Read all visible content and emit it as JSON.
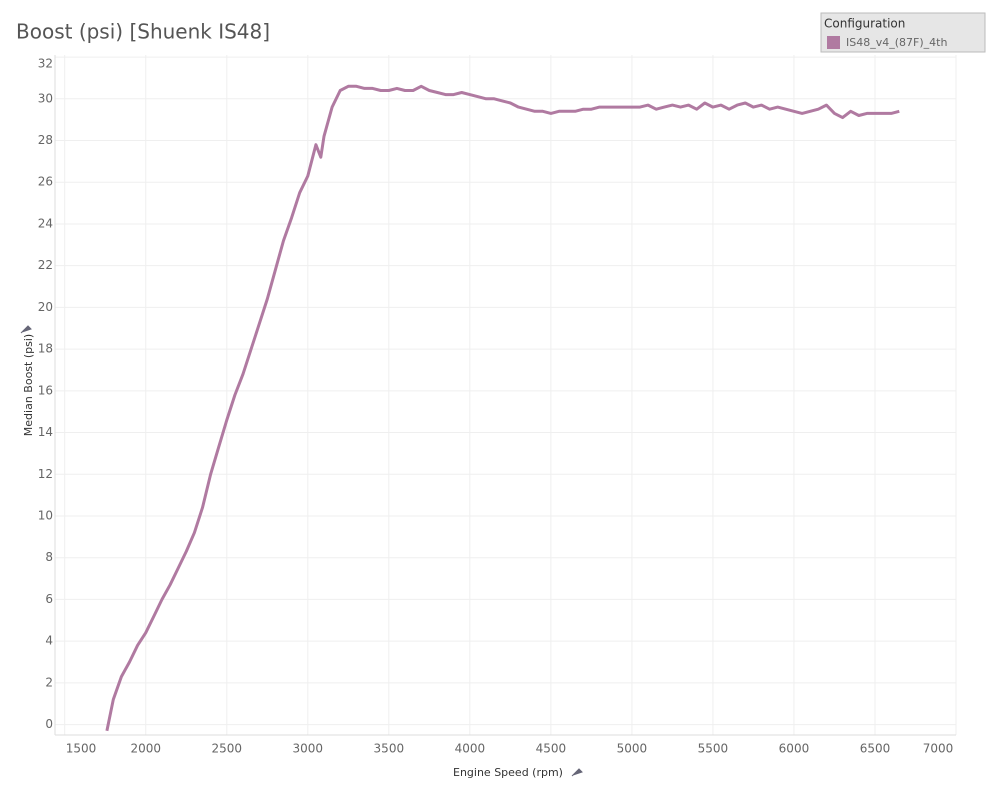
{
  "chart_data": {
    "type": "line",
    "title": "Boost (psi) [Shuenk IS48]",
    "x_label": "Engine Speed (rpm)",
    "y_label": "Median Boost (psi)",
    "legend_title": "Configuration",
    "x": [
      1760,
      1800,
      1850,
      1900,
      1950,
      2000,
      2050,
      2100,
      2150,
      2200,
      2250,
      2300,
      2350,
      2400,
      2450,
      2500,
      2550,
      2600,
      2650,
      2700,
      2750,
      2800,
      2850,
      2900,
      2950,
      3000,
      3050,
      3080,
      3100,
      3150,
      3200,
      3250,
      3300,
      3350,
      3400,
      3450,
      3500,
      3550,
      3600,
      3650,
      3700,
      3750,
      3800,
      3850,
      3900,
      3950,
      4000,
      4050,
      4100,
      4150,
      4200,
      4250,
      4300,
      4350,
      4400,
      4450,
      4500,
      4550,
      4600,
      4650,
      4700,
      4750,
      4800,
      4850,
      4900,
      4950,
      5000,
      5050,
      5100,
      5150,
      5200,
      5250,
      5300,
      5350,
      5400,
      5450,
      5500,
      5550,
      5600,
      5650,
      5700,
      5750,
      5800,
      5850,
      5900,
      5950,
      6000,
      6050,
      6100,
      6150,
      6200,
      6250,
      6300,
      6350,
      6400,
      6450,
      6500,
      6550,
      6600,
      6650
    ],
    "series": [
      {
        "name": "IS48_v4_(87F)_4th",
        "color": "#b07aa1",
        "values": [
          -0.3,
          1.2,
          2.3,
          3.0,
          3.8,
          4.4,
          5.2,
          6.0,
          6.7,
          7.5,
          8.3,
          9.2,
          10.4,
          12.0,
          13.3,
          14.6,
          15.8,
          16.8,
          18.0,
          19.2,
          20.4,
          21.8,
          23.2,
          24.3,
          25.5,
          26.3,
          27.8,
          27.2,
          28.2,
          29.6,
          30.4,
          30.6,
          30.6,
          30.5,
          30.5,
          30.4,
          30.4,
          30.5,
          30.4,
          30.4,
          30.6,
          30.4,
          30.3,
          30.2,
          30.2,
          30.3,
          30.2,
          30.1,
          30.0,
          30.0,
          29.9,
          29.8,
          29.6,
          29.5,
          29.4,
          29.4,
          29.3,
          29.4,
          29.4,
          29.4,
          29.5,
          29.5,
          29.6,
          29.6,
          29.6,
          29.6,
          29.6,
          29.6,
          29.7,
          29.5,
          29.6,
          29.7,
          29.6,
          29.7,
          29.5,
          29.8,
          29.6,
          29.7,
          29.5,
          29.7,
          29.8,
          29.6,
          29.7,
          29.5,
          29.6,
          29.5,
          29.4,
          29.3,
          29.4,
          29.5,
          29.7,
          29.3,
          29.1,
          29.4,
          29.2,
          29.3,
          29.3,
          29.3,
          29.3,
          29.4
        ]
      }
    ],
    "xlim": [
      1440,
      7000
    ],
    "ylim": [
      -0.5,
      32.1
    ],
    "xticks": [
      1500,
      2000,
      2500,
      3000,
      3500,
      4000,
      4500,
      5000,
      5500,
      6000,
      6500,
      7000
    ],
    "yticks": [
      0,
      2,
      4,
      6,
      8,
      10,
      12,
      14,
      16,
      18,
      20,
      22,
      24,
      26,
      28,
      30,
      32
    ],
    "grid": true
  }
}
